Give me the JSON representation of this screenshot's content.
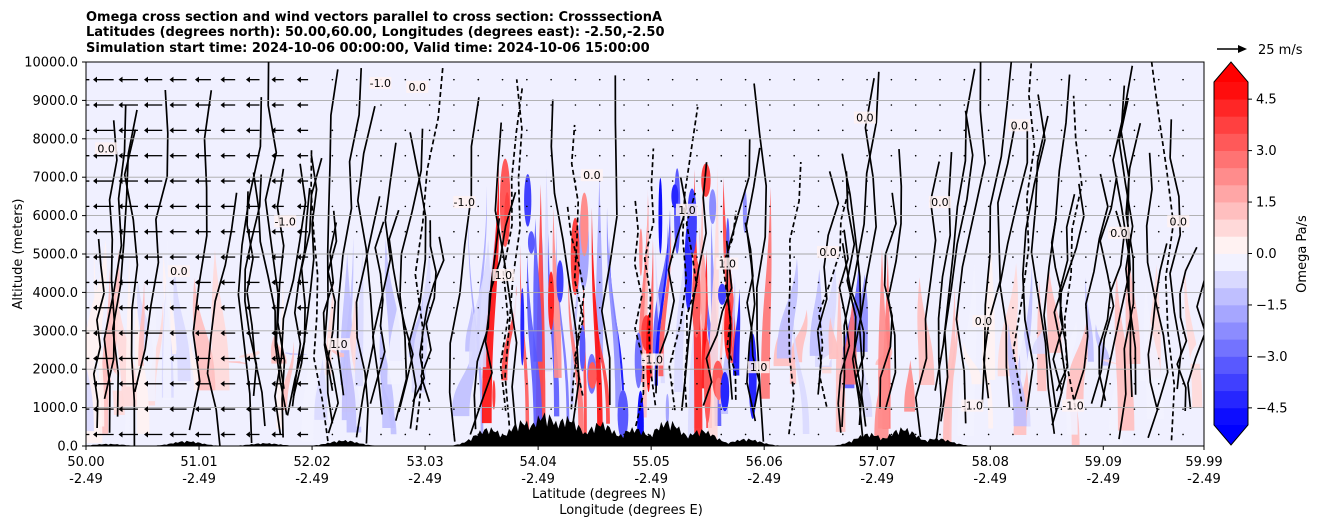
{
  "chart_data": {
    "type": "contour",
    "title_lines": [
      "Omega cross section and wind vectors parallel to cross section: CrosssectionA",
      "Latitudes (degrees north): 50.00,60.00, Longitudes (degrees east): -2.50,-2.50",
      "Simulation start time: 2024-10-06 00:00:00, Valid time: 2024-10-06 15:00:00"
    ],
    "ylabel": "Altitude (meters)",
    "xlabel_1": "Latitude (degrees N)",
    "xlabel_2": "Longitude (degrees E)",
    "ylim": [
      0,
      10000
    ],
    "y_ticks": [
      "0.0",
      "1000.0",
      "2000.0",
      "3000.0",
      "4000.0",
      "5000.0",
      "6000.0",
      "7000.0",
      "8000.0",
      "9000.0",
      "10000.0"
    ],
    "y_tick_values": [
      0,
      1000,
      2000,
      3000,
      4000,
      5000,
      6000,
      7000,
      8000,
      9000,
      10000
    ],
    "x_ticks_lat": [
      "50.00",
      "51.01",
      "52.02",
      "53.03",
      "54.04",
      "55.05",
      "56.06",
      "57.07",
      "58.08",
      "59.09",
      "59.99"
    ],
    "x_ticks_lon": [
      "-2.49",
      "-2.49",
      "-2.49",
      "-2.49",
      "-2.49",
      "-2.49",
      "-2.49",
      "-2.49",
      "-2.49",
      "-2.49",
      "-2.49"
    ],
    "x_tick_values": [
      50.0,
      51.01,
      52.02,
      53.03,
      54.04,
      55.05,
      56.06,
      57.07,
      58.08,
      59.09,
      59.99
    ],
    "xlim": [
      50.0,
      59.99
    ],
    "colorbar": {
      "label": "Omega Pa/s",
      "ticks": [
        "−4.5",
        "−3.0",
        "−1.5",
        "0.0",
        "1.5",
        "3.0",
        "4.5"
      ],
      "tick_values": [
        -4.5,
        -3.0,
        -1.5,
        0.0,
        1.5,
        3.0,
        4.5
      ],
      "range": [
        -5.0,
        5.0
      ],
      "levels": 20,
      "extend": "both",
      "cmap": "bwr"
    },
    "wind_key_label": "25 m/s",
    "contour_labels": [
      {
        "text": "-1.0",
        "lat": 52.63,
        "alt": 9400
      },
      {
        "text": "-1.0",
        "lat": 51.78,
        "alt": 5800
      },
      {
        "text": "0.0",
        "lat": 58.34,
        "alt": 8300
      },
      {
        "text": "0.0",
        "lat": 58.02,
        "alt": 3200
      },
      {
        "text": "0.0",
        "lat": 50.18,
        "alt": 7700
      },
      {
        "text": "1.0",
        "lat": 53.73,
        "alt": 4400
      },
      {
        "text": "1.0",
        "lat": 55.37,
        "alt": 6100
      },
      {
        "text": "0.0",
        "lat": 56.63,
        "alt": 5000
      },
      {
        "text": "-1.0",
        "lat": 53.38,
        "alt": 6300
      },
      {
        "text": "0.0",
        "lat": 59.23,
        "alt": 5500
      },
      {
        "text": "1.0",
        "lat": 56.01,
        "alt": 2000
      },
      {
        "text": "-1.0",
        "lat": 57.92,
        "alt": 1000
      },
      {
        "text": "0.0",
        "lat": 57.63,
        "alt": 6300
      },
      {
        "text": "1.0",
        "lat": 55.73,
        "alt": 4700
      },
      {
        "text": "0.0",
        "lat": 50.83,
        "alt": 4500
      },
      {
        "text": "-1.0",
        "lat": 58.82,
        "alt": 1000
      },
      {
        "text": "0.0",
        "lat": 59.76,
        "alt": 5800
      },
      {
        "text": "1.0",
        "lat": 52.26,
        "alt": 2600
      },
      {
        "text": "0.0",
        "lat": 54.52,
        "alt": 7000
      },
      {
        "text": "-1.0",
        "lat": 55.06,
        "alt": 2200
      },
      {
        "text": "0.0",
        "lat": 52.96,
        "alt": 9300
      },
      {
        "text": "0.0",
        "lat": 56.96,
        "alt": 8500
      }
    ]
  }
}
